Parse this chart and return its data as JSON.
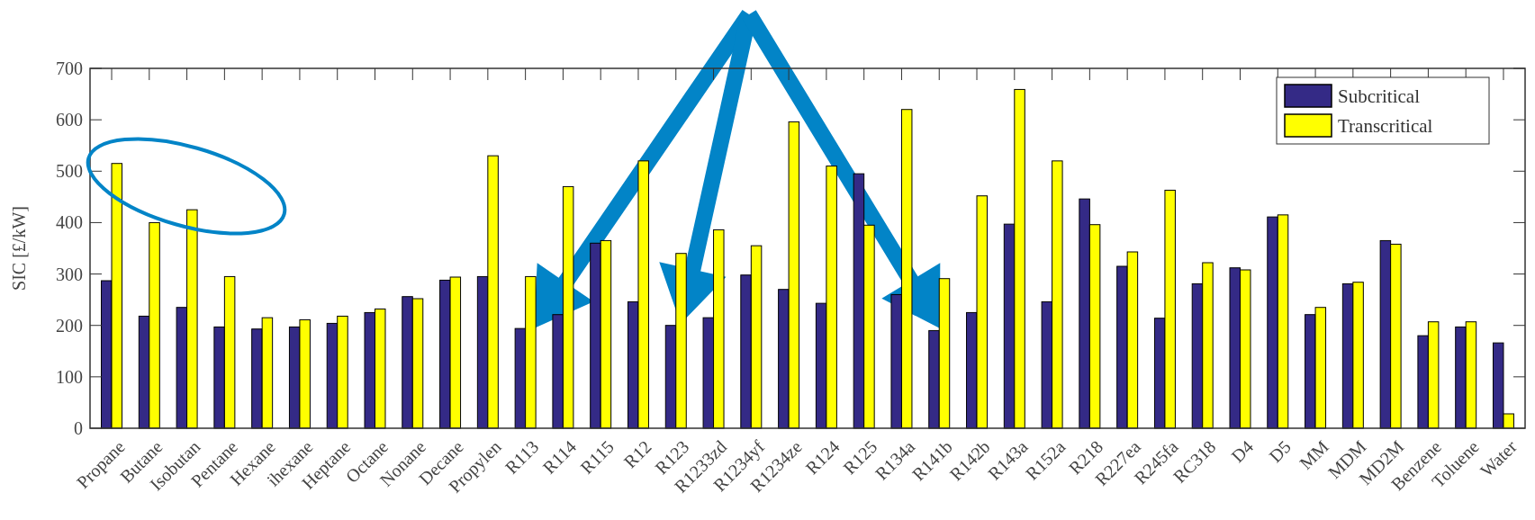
{
  "chart_data": {
    "type": "bar",
    "ylabel": "SIC [£/kW]",
    "categories": [
      "Propane",
      "Butane",
      "Isobutan",
      "Pentane",
      "Hexane",
      "ihexane",
      "Heptane",
      "Octane",
      "Nonane",
      "Decane",
      "Propylen",
      "R113",
      "R114",
      "R115",
      "R12",
      "R123",
      "R1233zd",
      "R1234yf",
      "R1234ze",
      "R124",
      "R125",
      "R134a",
      "R141b",
      "R142b",
      "R143a",
      "R152a",
      "R218",
      "R227ea",
      "R245fa",
      "RC318",
      "D4",
      "D5",
      "MM",
      "MDM",
      "MD2M",
      "Benzene",
      "Toluene",
      "Water"
    ],
    "series": [
      {
        "name": "Subcritical",
        "color": "#342a86",
        "values": [
          287,
          218,
          235,
          197,
          193,
          197,
          204,
          225,
          256,
          288,
          295,
          194,
          221,
          360,
          246,
          200,
          215,
          298,
          270,
          243,
          495,
          260,
          190,
          225,
          397,
          246,
          446,
          315,
          214,
          281,
          312,
          411,
          221,
          281,
          365,
          180,
          197,
          166
        ]
      },
      {
        "name": "Transcritical",
        "color": "#ffff00",
        "values": [
          515,
          400,
          425,
          295,
          215,
          211,
          218,
          232,
          252,
          294,
          530,
          295,
          470,
          365,
          520,
          340,
          386,
          355,
          596,
          510,
          395,
          620,
          291,
          452,
          659,
          520,
          396,
          343,
          463,
          322,
          308,
          415,
          235,
          284,
          358,
          207,
          207,
          28
        ]
      }
    ],
    "ylim": [
      0,
      700
    ],
    "yticks": [
      0,
      100,
      200,
      300,
      400,
      500,
      600,
      700
    ],
    "grid": false,
    "legend": "top right"
  }
}
